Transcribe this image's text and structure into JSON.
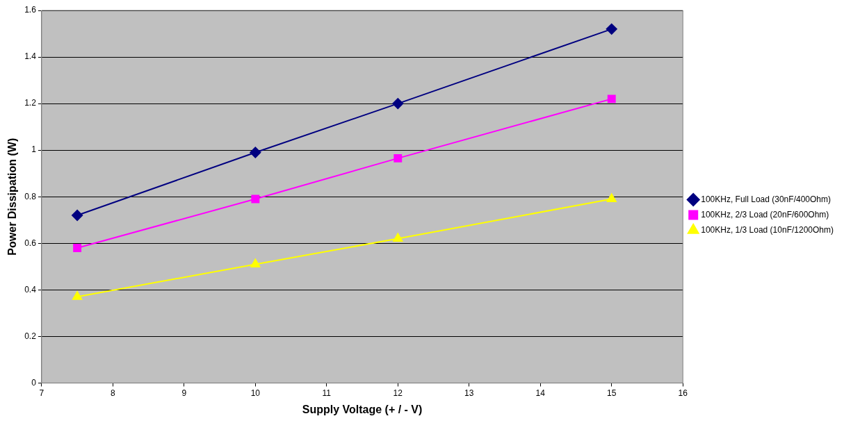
{
  "chart_data": {
    "type": "line",
    "xlabel": "Supply Voltage (+ / - V)",
    "ylabel": "Power Dissipation (W)",
    "x": [
      7.5,
      10,
      12,
      15
    ],
    "series": [
      {
        "name": "100KHz, Full Load (30nF/400Ohm)",
        "color": "#000080",
        "marker": "diamond",
        "values": [
          0.72,
          0.99,
          1.2,
          1.52
        ]
      },
      {
        "name": "100KHz, 2/3 Load (20nF/600Ohm)",
        "color": "#ff00ff",
        "marker": "square",
        "values": [
          0.58,
          0.79,
          0.965,
          1.22
        ]
      },
      {
        "name": "100KHz, 1/3 Load (10nF/1200Ohm)",
        "color": "#ffff00",
        "marker": "triangle",
        "values": [
          0.37,
          0.51,
          0.62,
          0.79
        ]
      }
    ],
    "xlim": [
      7,
      16
    ],
    "xticks": [
      7,
      8,
      9,
      10,
      11,
      12,
      13,
      14,
      15,
      16
    ],
    "ylim": [
      0,
      1.6
    ],
    "yticks": [
      0,
      0.2,
      0.4,
      0.6,
      0.8,
      1,
      1.2,
      1.4,
      1.6
    ],
    "grid": "y",
    "legend": "right",
    "line_style": "solid"
  }
}
